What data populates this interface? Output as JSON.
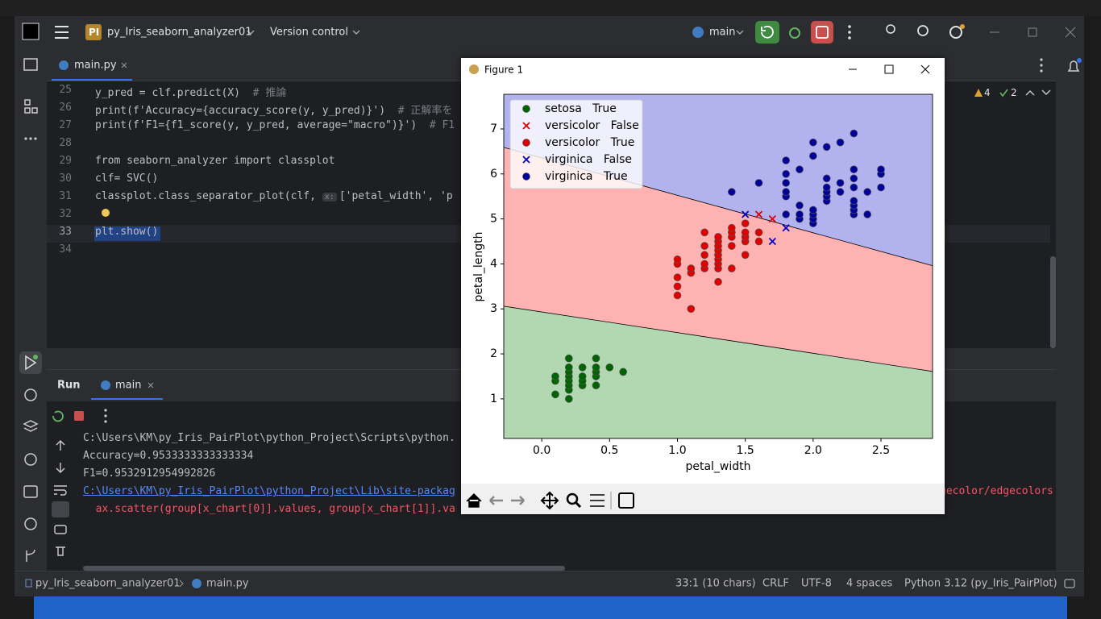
{
  "window": {
    "project_badge": "PI",
    "project": "py_Iris_seaborn_analyzer01",
    "vcs": "Version control",
    "branch": "main"
  },
  "editor": {
    "tab": "main.py",
    "warnings": 4,
    "checks": 2,
    "lines": [
      {
        "number": 25,
        "text": "y_pred = clf.predict(X)  ",
        "comment": "# 推論"
      },
      {
        "number": 26,
        "text": "print(f'Accuracy={accuracy_score(y, y_pred)}')  ",
        "comment": "# 正解率を"
      },
      {
        "number": 27,
        "text": "print(f'F1={f1_score(y, y_pred, average=\"macro\")}')  ",
        "comment": "# F1"
      },
      {
        "number": 28
      },
      {
        "number": 29,
        "text": "from seaborn_analyzer import classplot"
      },
      {
        "number": 30,
        "text": "clf= SVC()"
      },
      {
        "number": 31,
        "text": "classplot.class_separator_plot(clf, ",
        "hint": "x:",
        "text_after": "['petal_width', 'p"
      },
      {
        "number": 32
      },
      {
        "number": 33,
        "text": "plt.show()"
      },
      {
        "number": 34
      }
    ]
  },
  "run": {
    "title": "Run",
    "tab": "main",
    "console": [
      "C:\\Users\\KM\\py_Iris_PairPlot\\python_Project\\Scripts\\python.",
      "Accuracy=0.9533333333333334",
      "F1=0.9532912954992826",
      "C:\\Users\\KM\\py_Iris_PairPlot\\python_Project\\Lib\\site-packag",
      "  ax.scatter(group[x_chart[0]].values, group[x_chart[1]].va"
    ],
    "console_tail": "gecolor/edgecolors"
  },
  "status": {
    "project": "py_Iris_seaborn_analyzer01",
    "file": "main.py",
    "position": "33:1 (10 chars)",
    "line_separator": "CRLF",
    "encoding": "UTF-8",
    "indent": "4 spaces",
    "interpreter": "Python 3.12 (py_Iris_PairPlot)"
  },
  "figure": {
    "title": "Figure 1"
  },
  "chart_data": {
    "type": "scatter",
    "xlabel": "petal_width",
    "ylabel": "petal_length",
    "xlim": [
      -0.28,
      2.88
    ],
    "ylim": [
      0.12,
      7.77
    ],
    "xticks": [
      {
        "value": 0,
        "label": "0.0"
      },
      0.5,
      {
        "value": 1,
        "label": "1.0"
      },
      1.5,
      {
        "value": 2,
        "label": "2.0"
      },
      2.5
    ],
    "yticks": [
      1,
      2,
      3,
      4,
      5,
      6,
      7
    ],
    "legend": "upper left",
    "boundaries": [
      {
        "x": [
          -0.28,
          2.88
        ],
        "y": [
          3.06,
          1.61
        ]
      },
      {
        "x": [
          -0.28,
          2.88
        ],
        "y": [
          6.59,
          3.96
        ]
      }
    ],
    "region_colors": [
      "#b2d8b2",
      "#ffb2b2",
      "#b2b2ee"
    ],
    "series": [
      {
        "name": "setosa   True",
        "color": "#006400",
        "marker": "o",
        "x": [
          0.1,
          0.1,
          0.1,
          0.2,
          0.2,
          0.2,
          0.2,
          0.2,
          0.2,
          0.2,
          0.2,
          0.3,
          0.3,
          0.3,
          0.3,
          0.4,
          0.4,
          0.4,
          0.4,
          0.4,
          0.5,
          0.6
        ],
        "values": [
          1.1,
          1.4,
          1.5,
          1.0,
          1.2,
          1.3,
          1.4,
          1.5,
          1.6,
          1.7,
          1.9,
          1.3,
          1.4,
          1.5,
          1.7,
          1.3,
          1.5,
          1.6,
          1.7,
          1.9,
          1.7,
          1.6
        ]
      },
      {
        "name": "versicolor   False",
        "color": "#e00000",
        "marker": "x",
        "x": [
          1.6,
          1.7
        ],
        "values": [
          5.1,
          5.0
        ]
      },
      {
        "name": "versicolor   True",
        "color": "#e00000",
        "marker": "o",
        "x": [
          1.0,
          1.0,
          1.0,
          1.0,
          1.0,
          1.1,
          1.1,
          1.1,
          1.2,
          1.2,
          1.2,
          1.2,
          1.2,
          1.3,
          1.3,
          1.3,
          1.3,
          1.3,
          1.3,
          1.3,
          1.3,
          1.3,
          1.4,
          1.4,
          1.4,
          1.4,
          1.4,
          1.5,
          1.5,
          1.5,
          1.5,
          1.5,
          1.6,
          1.6
        ],
        "values": [
          3.3,
          3.5,
          3.7,
          4.0,
          4.1,
          3.0,
          3.8,
          3.9,
          3.9,
          4.0,
          4.2,
          4.4,
          4.7,
          3.6,
          3.9,
          4.0,
          4.1,
          4.2,
          4.3,
          4.4,
          4.5,
          4.6,
          3.9,
          4.4,
          4.6,
          4.7,
          4.8,
          4.2,
          4.5,
          4.6,
          4.7,
          4.9,
          4.5,
          4.7
        ]
      },
      {
        "name": "virginica   False",
        "color": "#0000c0",
        "marker": "x",
        "x": [
          1.5,
          1.7,
          1.8
        ],
        "values": [
          5.1,
          4.5,
          4.8
        ]
      },
      {
        "name": "virginica   True",
        "color": "#00009a",
        "marker": "o",
        "x": [
          1.4,
          1.6,
          1.8,
          1.8,
          1.8,
          1.8,
          1.8,
          1.8,
          1.9,
          1.9,
          1.9,
          1.9,
          2.0,
          2.0,
          2.0,
          2.0,
          2.0,
          2.0,
          2.1,
          2.1,
          2.1,
          2.1,
          2.1,
          2.1,
          2.2,
          2.2,
          2.2,
          2.3,
          2.3,
          2.3,
          2.3,
          2.3,
          2.3,
          2.3,
          2.3,
          2.4,
          2.4,
          2.5,
          2.5,
          2.5
        ],
        "values": [
          5.6,
          5.8,
          5.1,
          5.5,
          5.6,
          5.8,
          6.0,
          6.3,
          5.0,
          5.1,
          5.3,
          6.1,
          4.9,
          5.0,
          5.1,
          5.2,
          6.4,
          6.7,
          5.4,
          5.5,
          5.6,
          5.7,
          5.9,
          6.6,
          5.6,
          5.8,
          6.7,
          5.1,
          5.2,
          5.3,
          5.4,
          5.7,
          5.9,
          6.1,
          6.9,
          5.1,
          5.6,
          5.7,
          6.0,
          6.1
        ]
      }
    ]
  }
}
